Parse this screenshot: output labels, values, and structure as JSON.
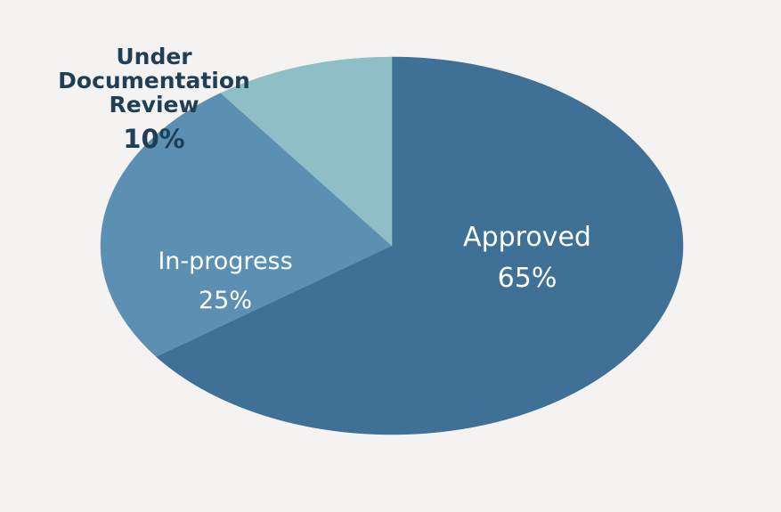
{
  "chart_data": {
    "type": "pie",
    "slices": [
      {
        "label": "Approved",
        "value": 65,
        "value_label": "65%",
        "color": "#3f7096"
      },
      {
        "label": "In-progress",
        "value": 25,
        "value_label": "25%",
        "color": "#5b90b2"
      },
      {
        "label": "Under\nDocumentation\nReview",
        "value": 10,
        "value_label": "10%",
        "color": "#8fbfc6"
      }
    ]
  },
  "colors": {
    "background": "#f4f3f1",
    "inner_label_text": "#ffffff",
    "outer_label_text": "#1f3f57"
  }
}
